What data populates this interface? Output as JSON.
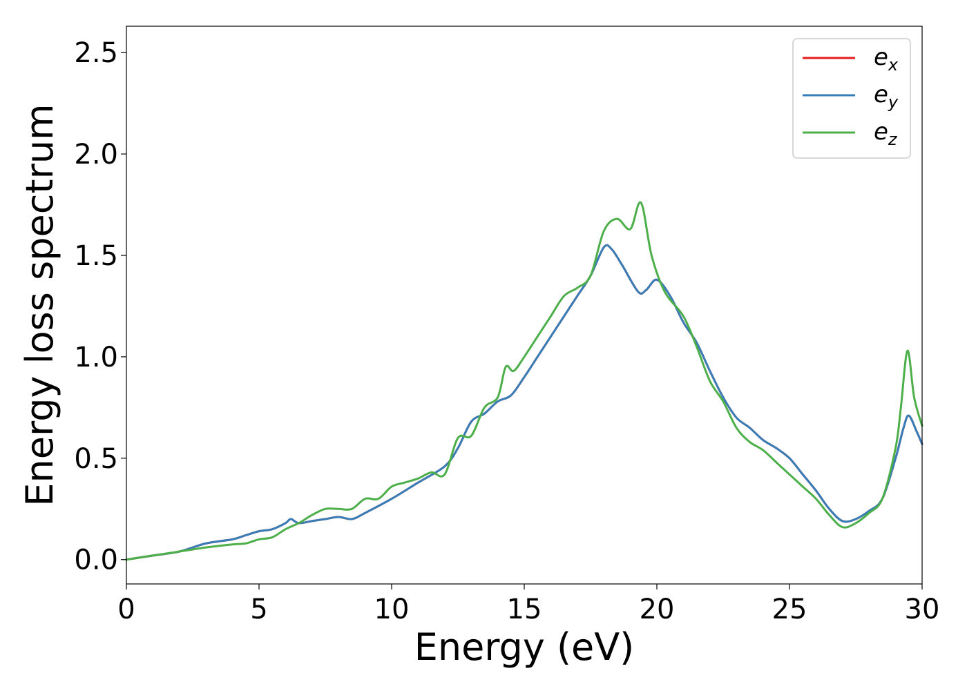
{
  "chart_data": {
    "type": "line",
    "xlabel": "Energy (eV)",
    "ylabel": "Energy loss spectrum",
    "xlim": [
      0,
      30
    ],
    "ylim": [
      -0.12,
      2.63
    ],
    "xticks": [
      0,
      5,
      10,
      15,
      20,
      25,
      30
    ],
    "xtick_labels": [
      "0",
      "5",
      "10",
      "15",
      "20",
      "25",
      "30"
    ],
    "yticks": [
      0.0,
      0.5,
      1.0,
      1.5,
      2.0,
      2.5
    ],
    "ytick_labels": [
      "0.0",
      "0.5",
      "1.0",
      "1.5",
      "2.0",
      "2.5"
    ],
    "grid": false,
    "legend_position": "top-right",
    "legend": [
      {
        "base": "e",
        "sub": "x",
        "color": "#e41a1c"
      },
      {
        "base": "e",
        "sub": "y",
        "color": "#377eb8"
      },
      {
        "base": "e",
        "sub": "z",
        "color": "#4daf4a"
      }
    ],
    "series": [
      {
        "name": "e_x",
        "color": "#e41a1c",
        "x": [
          0,
          1,
          2,
          3,
          4,
          4.5,
          5,
          5.5,
          6,
          6.2,
          6.5,
          7,
          7.5,
          8,
          8.5,
          9,
          10,
          11,
          12,
          12.5,
          13,
          13.5,
          14,
          14.5,
          15,
          15.5,
          16,
          16.5,
          17,
          17.5,
          18,
          18.3,
          18.7,
          19.3,
          19.6,
          20,
          20.5,
          21,
          21.5,
          22,
          22.5,
          23,
          23.5,
          24,
          24.5,
          25,
          25.5,
          26,
          26.5,
          27,
          27.5,
          28,
          28.5,
          29,
          29.3,
          29.5,
          29.8,
          30
        ],
        "values": [
          0.0,
          0.02,
          0.04,
          0.08,
          0.1,
          0.12,
          0.14,
          0.15,
          0.18,
          0.2,
          0.18,
          0.19,
          0.2,
          0.21,
          0.2,
          0.23,
          0.3,
          0.38,
          0.46,
          0.55,
          0.68,
          0.72,
          0.78,
          0.81,
          0.9,
          1.0,
          1.1,
          1.2,
          1.3,
          1.4,
          1.54,
          1.53,
          1.45,
          1.32,
          1.33,
          1.38,
          1.3,
          1.17,
          1.07,
          0.93,
          0.8,
          0.7,
          0.65,
          0.59,
          0.55,
          0.5,
          0.42,
          0.34,
          0.25,
          0.19,
          0.2,
          0.24,
          0.3,
          0.5,
          0.65,
          0.71,
          0.63,
          0.57
        ]
      },
      {
        "name": "e_y",
        "color": "#377eb8",
        "x": [
          0,
          1,
          2,
          3,
          4,
          4.5,
          5,
          5.5,
          6,
          6.2,
          6.5,
          7,
          7.5,
          8,
          8.5,
          9,
          10,
          11,
          12,
          12.5,
          13,
          13.5,
          14,
          14.5,
          15,
          15.5,
          16,
          16.5,
          17,
          17.5,
          18,
          18.3,
          18.7,
          19.3,
          19.6,
          20,
          20.5,
          21,
          21.5,
          22,
          22.5,
          23,
          23.5,
          24,
          24.5,
          25,
          25.5,
          26,
          26.5,
          27,
          27.5,
          28,
          28.5,
          29,
          29.3,
          29.5,
          29.8,
          30
        ],
        "values": [
          0.0,
          0.02,
          0.04,
          0.08,
          0.1,
          0.12,
          0.14,
          0.15,
          0.18,
          0.2,
          0.18,
          0.19,
          0.2,
          0.21,
          0.2,
          0.23,
          0.3,
          0.38,
          0.46,
          0.55,
          0.68,
          0.72,
          0.78,
          0.81,
          0.9,
          1.0,
          1.1,
          1.2,
          1.3,
          1.4,
          1.54,
          1.53,
          1.45,
          1.32,
          1.33,
          1.38,
          1.3,
          1.17,
          1.07,
          0.93,
          0.8,
          0.7,
          0.65,
          0.59,
          0.55,
          0.5,
          0.42,
          0.34,
          0.25,
          0.19,
          0.2,
          0.24,
          0.3,
          0.5,
          0.65,
          0.71,
          0.63,
          0.57
        ]
      },
      {
        "name": "e_z",
        "color": "#4daf4a",
        "x": [
          0,
          1,
          2,
          3,
          4,
          4.5,
          5,
          5.5,
          6,
          6.5,
          7,
          7.5,
          8,
          8.5,
          9,
          9.5,
          10,
          10.5,
          11,
          11.5,
          12,
          12.5,
          13,
          13.5,
          14,
          14.3,
          14.6,
          15,
          15.5,
          16,
          16.5,
          17,
          17.5,
          18,
          18.5,
          19,
          19.4,
          19.8,
          20.3,
          21,
          21.5,
          22,
          22.5,
          23,
          23.5,
          24,
          24.5,
          25,
          25.5,
          26,
          26.5,
          27,
          27.5,
          28,
          28.5,
          29,
          29.2,
          29.45,
          29.7,
          30
        ],
        "values": [
          0.0,
          0.02,
          0.04,
          0.06,
          0.075,
          0.08,
          0.1,
          0.11,
          0.15,
          0.18,
          0.22,
          0.25,
          0.25,
          0.25,
          0.3,
          0.3,
          0.36,
          0.38,
          0.4,
          0.43,
          0.42,
          0.6,
          0.61,
          0.75,
          0.8,
          0.95,
          0.93,
          1.0,
          1.1,
          1.2,
          1.3,
          1.34,
          1.4,
          1.62,
          1.68,
          1.63,
          1.76,
          1.5,
          1.32,
          1.2,
          1.05,
          0.88,
          0.78,
          0.65,
          0.58,
          0.54,
          0.48,
          0.42,
          0.36,
          0.3,
          0.22,
          0.16,
          0.18,
          0.23,
          0.3,
          0.55,
          0.75,
          1.03,
          0.8,
          0.66
        ]
      }
    ]
  }
}
